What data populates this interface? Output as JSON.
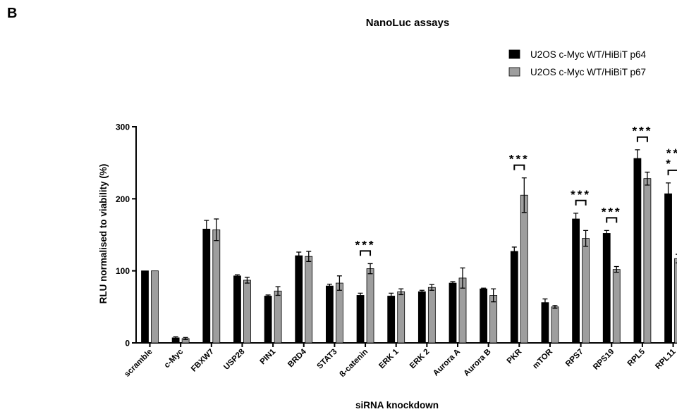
{
  "panel_label": "B",
  "chart_data": {
    "type": "bar",
    "title": "NanoLuc assays",
    "xlabel": "siRNA knockdown",
    "ylabel": "RLU normalised to viability (%)",
    "ylim": [
      0,
      300
    ],
    "yticks": [
      0,
      100,
      200,
      300
    ],
    "grid": false,
    "legend_position": "top-right",
    "categories": [
      "scramble",
      "c-Myc",
      "FBXW7",
      "USP28",
      "PIN1",
      "BRD4",
      "STAT3",
      "ß-catenin",
      "ERK 1",
      "ERK 2",
      "Aurora A",
      "Aurora B",
      "PKR",
      "mTOR",
      "RPS7",
      "RPS19",
      "RPL5",
      "RPL11"
    ],
    "series": [
      {
        "name": "U2OS c-Myc WT/HiBiT p64",
        "color": "#000000",
        "values": [
          100,
          7,
          158,
          93,
          65,
          121,
          79,
          66,
          65,
          71,
          83,
          75,
          127,
          56,
          172,
          152,
          256,
          207
        ],
        "errors": [
          0,
          1.5,
          12,
          1.5,
          1.5,
          5,
          2.5,
          3,
          4,
          2,
          2,
          1,
          6,
          5,
          8,
          4,
          12,
          15
        ]
      },
      {
        "name": "U2OS c-Myc WT/HiBiT p67",
        "color": "#9e9e9e",
        "values": [
          100,
          6,
          157,
          87,
          72,
          120,
          83,
          103,
          71,
          77,
          90,
          66,
          205,
          50,
          145,
          102,
          228,
          117
        ],
        "errors": [
          0,
          1.5,
          15,
          4,
          6,
          7,
          10,
          7,
          4,
          4,
          14,
          9,
          24,
          2,
          11,
          4,
          9,
          6
        ]
      }
    ],
    "annotations": [
      {
        "category": "ß-catenin",
        "text": "***"
      },
      {
        "category": "PKR",
        "text": "***"
      },
      {
        "category": "RPS7",
        "text": "***"
      },
      {
        "category": "RPS19",
        "text": "***"
      },
      {
        "category": "RPL5",
        "text": "***"
      },
      {
        "category": "RPL11",
        "text": "***"
      }
    ]
  }
}
